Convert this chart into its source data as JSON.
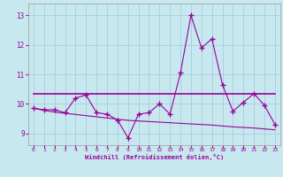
{
  "xlabel": "Windchill (Refroidissement éolien,°C)",
  "x_ticks": [
    0,
    1,
    2,
    3,
    4,
    5,
    6,
    7,
    8,
    9,
    10,
    11,
    12,
    13,
    14,
    15,
    16,
    17,
    18,
    19,
    20,
    21,
    22,
    23
  ],
  "y_ticks": [
    9,
    10,
    11,
    12,
    13
  ],
  "ylim": [
    8.6,
    13.4
  ],
  "xlim": [
    -0.5,
    23.5
  ],
  "bg_color": "#c8e8f0",
  "grid_color": "#a0c8d8",
  "line_color": "#990099",
  "series1_x": [
    0,
    1,
    2,
    3,
    4,
    5,
    6,
    7,
    8,
    9,
    10,
    11,
    12,
    13,
    14,
    15,
    16,
    17,
    18,
    19,
    20,
    21,
    22,
    23
  ],
  "series1_y": [
    9.85,
    9.8,
    9.8,
    9.7,
    10.2,
    10.3,
    9.7,
    9.65,
    9.45,
    8.85,
    9.65,
    9.7,
    10.0,
    9.65,
    11.05,
    13.0,
    11.9,
    12.2,
    10.65,
    9.75,
    10.05,
    10.35,
    9.95,
    9.3
  ],
  "series2_y": [
    10.35,
    10.35,
    10.35,
    10.35,
    10.35,
    10.35,
    10.35,
    10.35,
    10.35,
    10.35,
    10.35,
    10.35,
    10.35,
    10.35,
    10.35,
    10.35,
    10.35,
    10.35,
    10.35,
    10.35,
    10.35,
    10.35,
    10.35,
    10.35
  ],
  "series3_y": [
    9.85,
    9.78,
    9.72,
    9.68,
    9.64,
    9.6,
    9.56,
    9.52,
    9.48,
    9.44,
    9.42,
    9.4,
    9.38,
    9.36,
    9.34,
    9.32,
    9.3,
    9.28,
    9.25,
    9.22,
    9.2,
    9.18,
    9.15,
    9.12
  ]
}
